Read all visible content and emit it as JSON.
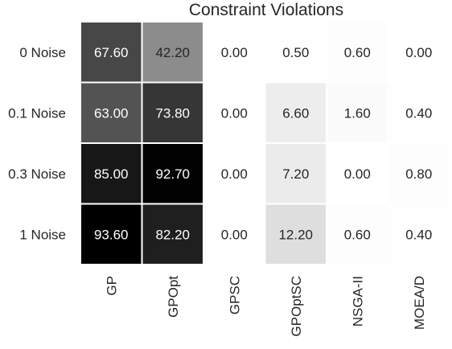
{
  "chart_data": {
    "type": "heatmap",
    "title": "Constraint Violations",
    "rows": [
      "0 Noise",
      "0.1 Noise",
      "0.3 Noise",
      "1 Noise"
    ],
    "columns": [
      "GP",
      "GPOpt",
      "GPSC",
      "GPOptSC",
      "NSGA-II",
      "MOEA/D"
    ],
    "values": [
      [
        67.6,
        42.2,
        0.0,
        0.5,
        0.6,
        0.0
      ],
      [
        63.0,
        73.8,
        0.0,
        6.6,
        1.6,
        0.4
      ],
      [
        85.0,
        92.7,
        0.0,
        7.2,
        0.0,
        0.8
      ],
      [
        93.6,
        82.2,
        0.0,
        12.2,
        0.6,
        0.4
      ]
    ],
    "value_labels": [
      [
        "67.60",
        "42.20",
        "0.00",
        "0.50",
        "0.60",
        "0.00"
      ],
      [
        "63.00",
        "73.80",
        "0.00",
        "6.60",
        "1.60",
        "0.40"
      ],
      [
        "85.00",
        "92.70",
        "0.00",
        "7.20",
        "0.00",
        "0.80"
      ],
      [
        "93.60",
        "82.20",
        "0.00",
        "12.20",
        "0.60",
        "0.40"
      ]
    ],
    "colormap": "white-to-black",
    "color_range": [
      0,
      93.6
    ],
    "colors": {
      "low": "#ffffff",
      "high": "#000000"
    },
    "grid": false,
    "legend": "none"
  }
}
